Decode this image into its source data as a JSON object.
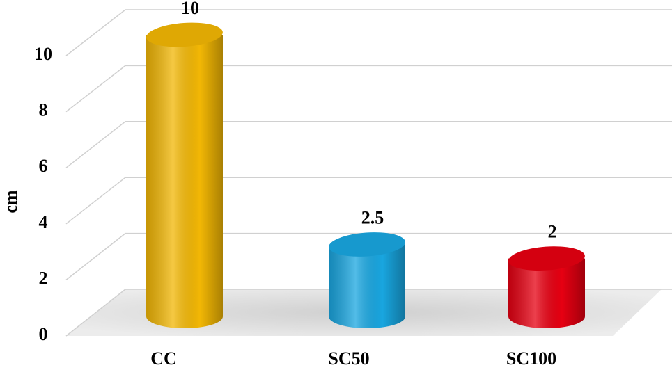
{
  "chart_data": {
    "type": "bar3d",
    "y_label": "cm",
    "categories": [
      "CC",
      "SC50",
      "SC100"
    ],
    "values": [
      10,
      2.5,
      2
    ],
    "colors": [
      "#f2b705",
      "#19a6e0",
      "#e60012"
    ],
    "ylim": [
      0,
      10
    ],
    "yticks": [
      0,
      2,
      4,
      6,
      8,
      10
    ],
    "grid": true
  }
}
